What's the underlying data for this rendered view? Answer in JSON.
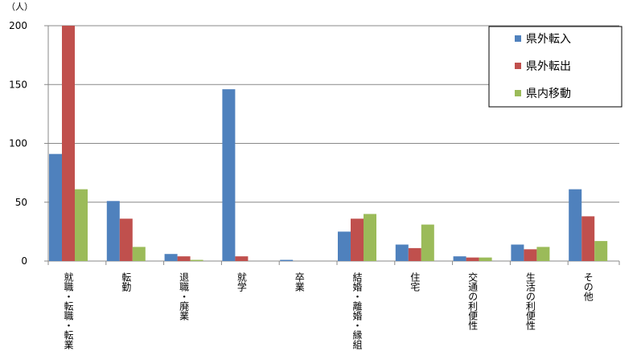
{
  "chart_data": {
    "type": "bar",
    "unit_label": "（人）",
    "categories": [
      "就職・転職・転業",
      "転勤",
      "退職・廃業",
      "就学",
      "卒業",
      "結婚・離婚・縁組",
      "住宅",
      "交通の利便性",
      "生活の利便性",
      "その他"
    ],
    "series": [
      {
        "name": "県外転入",
        "color": "#4f81bd",
        "values": [
          91,
          51,
          6,
          146,
          1,
          25,
          14,
          4,
          14,
          61
        ]
      },
      {
        "name": "県外転出",
        "color": "#c0504d",
        "values": [
          200,
          36,
          4,
          4,
          0,
          36,
          11,
          3,
          10,
          38
        ]
      },
      {
        "name": "県内移動",
        "color": "#9bbb59",
        "values": [
          61,
          12,
          1,
          0,
          0,
          40,
          31,
          3,
          12,
          17
        ]
      }
    ],
    "ylim": [
      0,
      200
    ],
    "yticks": [
      0,
      50,
      100,
      150,
      200
    ],
    "grid": true,
    "legend": "top-right"
  }
}
